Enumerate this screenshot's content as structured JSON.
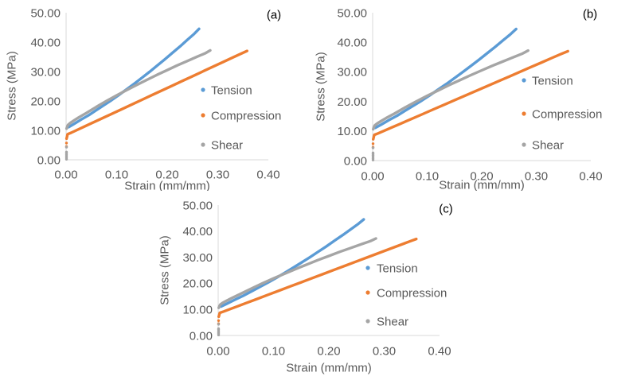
{
  "page": {
    "background": "#FFFFFF"
  },
  "chart_data": {
    "type": "scatter",
    "title": "",
    "xlabel": "Strain (mm/mm)",
    "ylabel": "Stress (MPa)",
    "xlim": [
      0,
      0.4
    ],
    "ylim": [
      0,
      50
    ],
    "x_tick_labels": [
      "0.00",
      "0.10",
      "0.20",
      "0.30",
      "0.40"
    ],
    "x_tick_values": [
      0,
      0.1,
      0.2,
      0.3,
      0.4
    ],
    "y_tick_labels": [
      "0.00",
      "10.00",
      "20.00",
      "30.00",
      "40.00",
      "50.00"
    ],
    "y_tick_values": [
      0,
      10,
      20,
      30,
      40,
      50
    ],
    "grid": false,
    "legend_position": "inside-right",
    "text_color": "#595959",
    "axis_color": "#D9D9D9",
    "panel_label_color": "#000000",
    "panels": [
      {
        "id": "a",
        "label": "(a)"
      },
      {
        "id": "b",
        "label": "(b)"
      },
      {
        "id": "c",
        "label": "(c)"
      }
    ],
    "series": [
      {
        "name": "Tension",
        "color": "#5B9BD5",
        "zero_column": [],
        "points": [
          [
            0.005,
            11.1
          ],
          [
            0.015,
            12.1
          ],
          [
            0.03,
            13.7
          ],
          [
            0.045,
            15.2
          ],
          [
            0.06,
            16.9
          ],
          [
            0.075,
            18.6
          ],
          [
            0.09,
            20.3
          ],
          [
            0.105,
            22.1
          ],
          [
            0.12,
            24.0
          ],
          [
            0.135,
            25.9
          ],
          [
            0.15,
            27.9
          ],
          [
            0.165,
            29.9
          ],
          [
            0.18,
            32.0
          ],
          [
            0.195,
            34.1
          ],
          [
            0.21,
            36.3
          ],
          [
            0.225,
            38.5
          ],
          [
            0.24,
            40.8
          ],
          [
            0.252,
            42.6
          ],
          [
            0.263,
            44.5
          ]
        ]
      },
      {
        "name": "Compression",
        "color": "#ED7D31",
        "zero_column": [
          4.5,
          5.7
        ],
        "points": [
          [
            0.001,
            7.2
          ],
          [
            0.002,
            8.0
          ],
          [
            0.003,
            8.7
          ],
          [
            0.01,
            9.2
          ],
          [
            0.02,
            10.0
          ],
          [
            0.035,
            11.2
          ],
          [
            0.05,
            12.4
          ],
          [
            0.07,
            14.0
          ],
          [
            0.09,
            15.6
          ],
          [
            0.11,
            17.2
          ],
          [
            0.13,
            18.8
          ],
          [
            0.15,
            20.4
          ],
          [
            0.17,
            22.0
          ],
          [
            0.19,
            23.6
          ],
          [
            0.21,
            25.2
          ],
          [
            0.23,
            26.8
          ],
          [
            0.25,
            28.4
          ],
          [
            0.27,
            30.0
          ],
          [
            0.29,
            31.6
          ],
          [
            0.31,
            33.2
          ],
          [
            0.33,
            34.8
          ],
          [
            0.345,
            36.0
          ],
          [
            0.358,
            37.0
          ]
        ]
      },
      {
        "name": "Shear",
        "color": "#A5A5A5",
        "zero_column": [
          0.2,
          0.7,
          1.2,
          1.7,
          2.2,
          2.6,
          4.3
        ],
        "points": [
          [
            0.001,
            10.6
          ],
          [
            0.002,
            11.2
          ],
          [
            0.004,
            11.9
          ],
          [
            0.008,
            12.5
          ],
          [
            0.015,
            13.3
          ],
          [
            0.025,
            14.4
          ],
          [
            0.04,
            15.9
          ],
          [
            0.06,
            18.0
          ],
          [
            0.08,
            20.0
          ],
          [
            0.1,
            21.9
          ],
          [
            0.12,
            23.7
          ],
          [
            0.14,
            25.5
          ],
          [
            0.16,
            27.2
          ],
          [
            0.18,
            28.9
          ],
          [
            0.2,
            30.5
          ],
          [
            0.22,
            32.1
          ],
          [
            0.24,
            33.6
          ],
          [
            0.26,
            35.1
          ],
          [
            0.275,
            36.2
          ],
          [
            0.285,
            37.2
          ]
        ]
      }
    ]
  }
}
